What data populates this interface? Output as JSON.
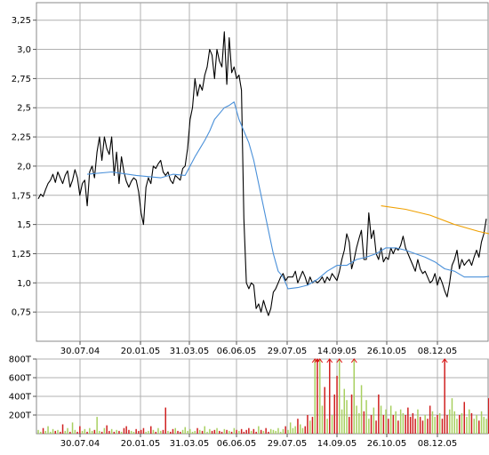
{
  "chart_data": [
    {
      "type": "line",
      "title": "",
      "xlabel": "",
      "ylabel": "",
      "ylim": [
        0.5,
        3.4
      ],
      "x_tick_labels": [
        "30.07.04",
        "20.01.05",
        "31.03.05",
        "06.06.05",
        "29.07.05",
        "14.09.05",
        "26.10.05",
        "08.12.05"
      ],
      "y_tick_labels": [
        "0,75",
        "1,0",
        "1,25",
        "1,5",
        "1,75",
        "2,0",
        "2,25",
        "2,5",
        "2,75",
        "3,0",
        "3,25"
      ],
      "y_tick_values": [
        0.75,
        1.0,
        1.25,
        1.5,
        1.75,
        2.0,
        2.25,
        2.5,
        2.75,
        3.0,
        3.25
      ],
      "grid": true,
      "colors": {
        "price": "#000000",
        "ma_short": "#4a90d9",
        "ma_long": "#f0a000",
        "grid": "#b0b0b0"
      },
      "series": [
        {
          "key": "price",
          "values": [
            1.72,
            1.76,
            1.74,
            1.8,
            1.85,
            1.88,
            1.93,
            1.86,
            1.95,
            1.9,
            1.85,
            1.92,
            1.96,
            1.82,
            1.88,
            1.97,
            1.9,
            1.75,
            1.85,
            1.88,
            1.66,
            1.95,
            2.0,
            1.9,
            2.12,
            2.25,
            2.05,
            2.25,
            2.15,
            2.1,
            2.25,
            1.92,
            2.12,
            1.85,
            2.08,
            1.95,
            1.87,
            1.82,
            1.87,
            1.9,
            1.88,
            1.78,
            1.6,
            1.5,
            1.82,
            1.9,
            1.85,
            2.0,
            1.98,
            2.02,
            2.05,
            1.95,
            1.92,
            1.95,
            1.88,
            1.85,
            1.92,
            1.9,
            1.88,
            1.98,
            2.0,
            2.15,
            2.4,
            2.5,
            2.75,
            2.6,
            2.7,
            2.65,
            2.78,
            2.85,
            3.0,
            2.95,
            2.75,
            3.0,
            2.9,
            2.85,
            3.15,
            2.7,
            3.1,
            2.8,
            2.85,
            2.75,
            2.78,
            2.65,
            1.55,
            1.0,
            0.95,
            1.0,
            0.98,
            0.78,
            0.82,
            0.75,
            0.85,
            0.78,
            0.72,
            0.78,
            0.92,
            0.95,
            1.0,
            1.05,
            1.08,
            1.02,
            1.05,
            1.05,
            1.05,
            1.1,
            1.0,
            1.05,
            1.1,
            1.05,
            0.98,
            1.05,
            1.0,
            1.02,
            1.0,
            1.02,
            1.05,
            1.0,
            1.05,
            1.02,
            1.08,
            1.05,
            1.02,
            1.1,
            1.2,
            1.28,
            1.42,
            1.35,
            1.12,
            1.2,
            1.3,
            1.38,
            1.45,
            1.2,
            1.2,
            1.6,
            1.38,
            1.45,
            1.25,
            1.2,
            1.3,
            1.18,
            1.22,
            1.2,
            1.3,
            1.25,
            1.3,
            1.28,
            1.32,
            1.4,
            1.3,
            1.25,
            1.2,
            1.15,
            1.1,
            1.2,
            1.12,
            1.08,
            1.1,
            1.05,
            1.0,
            1.02,
            1.08,
            0.98,
            1.05,
            1.0,
            0.93,
            0.88,
            1.0,
            1.15,
            1.2,
            1.28,
            1.12,
            1.2,
            1.15,
            1.18,
            1.2,
            1.15,
            1.22,
            1.28,
            1.22,
            1.35,
            1.42,
            1.55
          ]
        },
        {
          "key": "ma_short",
          "values": [
            [
              20,
              1.93
            ],
            [
              30,
              1.95
            ],
            [
              40,
              1.92
            ],
            [
              50,
              1.9
            ],
            [
              55,
              1.93
            ],
            [
              60,
              1.92
            ],
            [
              62,
              2.0
            ],
            [
              64,
              2.08
            ],
            [
              66,
              2.15
            ],
            [
              68,
              2.22
            ],
            [
              70,
              2.3
            ],
            [
              72,
              2.4
            ],
            [
              74,
              2.45
            ],
            [
              76,
              2.5
            ],
            [
              78,
              2.52
            ],
            [
              80,
              2.55
            ],
            [
              82,
              2.4
            ],
            [
              84,
              2.3
            ],
            [
              86,
              2.2
            ],
            [
              88,
              2.05
            ],
            [
              90,
              1.85
            ],
            [
              92,
              1.65
            ],
            [
              94,
              1.45
            ],
            [
              96,
              1.25
            ],
            [
              98,
              1.1
            ],
            [
              100,
              1.05
            ],
            [
              102,
              0.95
            ],
            [
              106,
              0.96
            ],
            [
              110,
              0.98
            ],
            [
              114,
              1.03
            ],
            [
              118,
              1.1
            ],
            [
              122,
              1.15
            ],
            [
              126,
              1.15
            ],
            [
              130,
              1.2
            ],
            [
              134,
              1.22
            ],
            [
              138,
              1.25
            ],
            [
              142,
              1.3
            ],
            [
              146,
              1.3
            ],
            [
              150,
              1.28
            ],
            [
              154,
              1.25
            ],
            [
              158,
              1.22
            ],
            [
              162,
              1.18
            ],
            [
              166,
              1.12
            ],
            [
              170,
              1.1
            ],
            [
              174,
              1.05
            ],
            [
              178,
              1.05
            ],
            [
              182,
              1.05
            ],
            [
              186,
              1.06
            ],
            [
              188,
              1.1
            ],
            [
              189,
              1.15
            ]
          ]
        },
        {
          "key": "ma_long",
          "values": [
            [
              140,
              1.66
            ],
            [
              150,
              1.63
            ],
            [
              160,
              1.58
            ],
            [
              170,
              1.5
            ],
            [
              180,
              1.44
            ],
            [
              189,
              1.4
            ]
          ]
        }
      ]
    },
    {
      "type": "bar",
      "title": "",
      "xlabel": "",
      "ylabel": "",
      "ylim": [
        0,
        800000
      ],
      "x_tick_labels": [
        "30.07.04",
        "20.01.05",
        "31.03.05",
        "06.06.05",
        "29.07.05",
        "14.09.05",
        "26.10.05",
        "08.12.05"
      ],
      "y_tick_labels": [
        "800T",
        "600T",
        "400T",
        "200T"
      ],
      "y_tick_values": [
        800000,
        600000,
        400000,
        200000
      ],
      "grid": true,
      "colors": {
        "up": "#a8d060",
        "down": "#d02020",
        "capped_marker": "#e01010"
      },
      "series": [
        {
          "key": "volume_thousands",
          "values": [
            40,
            20,
            60,
            30,
            80,
            20,
            50,
            30,
            40,
            20,
            100,
            30,
            60,
            20,
            120,
            40,
            20,
            80,
            30,
            50,
            20,
            60,
            30,
            40,
            180,
            30,
            20,
            60,
            90,
            30,
            50,
            20,
            40,
            30,
            20,
            60,
            80,
            40,
            30,
            20,
            50,
            30,
            40,
            60,
            20,
            30,
            80,
            40,
            20,
            60,
            30,
            40,
            280,
            30,
            20,
            50,
            60,
            30,
            20,
            40,
            70,
            30,
            50,
            20,
            30,
            60,
            40,
            30,
            80,
            20,
            50,
            30,
            40,
            60,
            30,
            20,
            50,
            40,
            30,
            20,
            60,
            40,
            30,
            50,
            20,
            40,
            60,
            30,
            50,
            20,
            80,
            40,
            30,
            60,
            20,
            50,
            40,
            30,
            60,
            20,
            50,
            80,
            40,
            120,
            60,
            80,
            160,
            100,
            60,
            80,
            200,
            140,
            180,
            820,
            820,
            820,
            300,
            500,
            160,
            820,
            200,
            420,
            620,
            820,
            260,
            480,
            360,
            180,
            420,
            820,
            300,
            220,
            520,
            240,
            360,
            160,
            200,
            280,
            140,
            420,
            300,
            200,
            260,
            160,
            300,
            200,
            240,
            140,
            260,
            220,
            200,
            280,
            180,
            220,
            160,
            260,
            180,
            140,
            200,
            160,
            300,
            240,
            180,
            200,
            220,
            160,
            820,
            200,
            260,
            380,
            240,
            160,
            200,
            220,
            340,
            180,
            260,
            220,
            160,
            200,
            140,
            240,
            180,
            160,
            380,
            200,
            240,
            420,
            300
          ]
        }
      ]
    }
  ]
}
